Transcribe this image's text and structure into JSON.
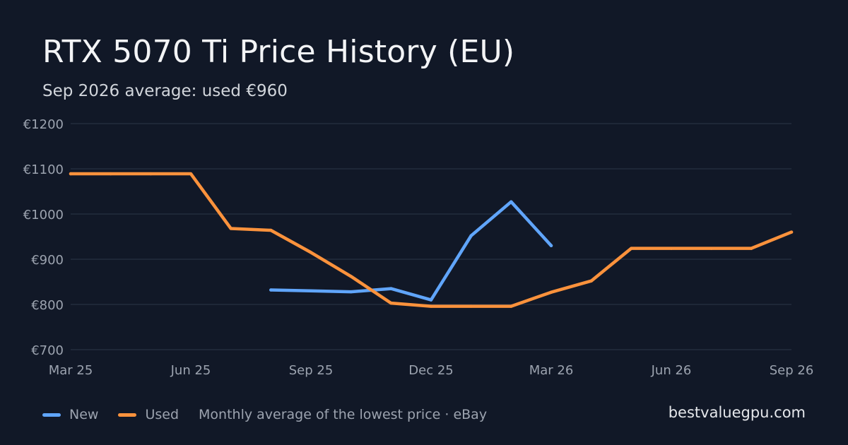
{
  "header": {
    "title": "RTX 5070 Ti Price History (EU)",
    "subtitle": "Sep 2026 average: used €960"
  },
  "footer": {
    "note": "Monthly average of the lowest price · eBay",
    "site": "bestvaluegpu.com"
  },
  "colors": {
    "background": "#111827",
    "grid": "#263041",
    "axis_text": "#9ca3af",
    "new": "#60a5fa",
    "used": "#fb923c"
  },
  "chart_data": {
    "type": "line",
    "title": "RTX 5070 Ti Price History (EU)",
    "subtitle": "Sep 2026 average: used €960",
    "x": [
      "2025-03",
      "2025-04",
      "2025-05",
      "2025-06",
      "2025-07",
      "2025-08",
      "2025-09",
      "2025-10",
      "2025-11",
      "2025-12",
      "2026-01",
      "2026-02",
      "2026-03",
      "2026-04",
      "2026-05",
      "2026-06",
      "2026-07",
      "2026-08",
      "2026-09"
    ],
    "x_ticks": [
      {
        "x": "2025-03",
        "label": "Mar 25"
      },
      {
        "x": "2025-06",
        "label": "Jun 25"
      },
      {
        "x": "2025-09",
        "label": "Sep 25"
      },
      {
        "x": "2025-12",
        "label": "Dec 25"
      },
      {
        "x": "2026-03",
        "label": "Mar 26"
      },
      {
        "x": "2026-06",
        "label": "Jun 26"
      },
      {
        "x": "2026-09",
        "label": "Sep 26"
      }
    ],
    "y_ticks": [
      {
        "value": 1200,
        "label": "€1200"
      },
      {
        "value": 1100,
        "label": "€1100"
      },
      {
        "value": 1000,
        "label": "€1000"
      },
      {
        "value": 900,
        "label": "€900"
      },
      {
        "value": 800,
        "label": "€800"
      },
      {
        "value": 700,
        "label": "€700"
      }
    ],
    "ylim": [
      700,
      1200
    ],
    "ylabel_unit": "€",
    "grid": true,
    "legend_position": "bottom-left",
    "series": [
      {
        "name": "New",
        "color": "#60a5fa",
        "values": [
          null,
          null,
          null,
          null,
          null,
          832,
          830,
          828,
          835,
          810,
          952,
          1027,
          930,
          null,
          null,
          null,
          null,
          null,
          null
        ]
      },
      {
        "name": "Used",
        "color": "#fb923c",
        "values": [
          1089,
          1089,
          1089,
          1089,
          968,
          964,
          915,
          862,
          803,
          796,
          796,
          796,
          827,
          852,
          924,
          924,
          924,
          924,
          960
        ]
      }
    ]
  }
}
